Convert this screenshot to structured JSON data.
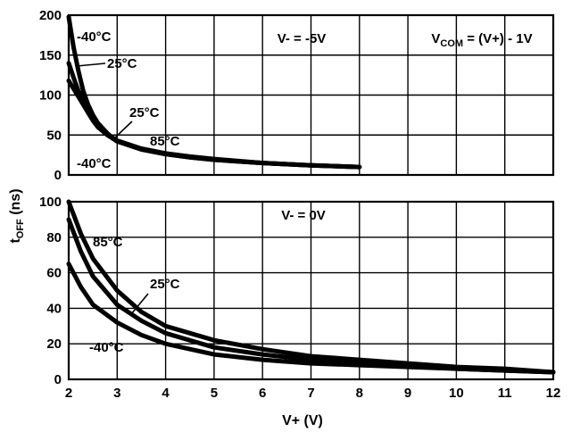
{
  "chart_data": [
    {
      "type": "line",
      "title": "",
      "annotation_box": "V- = -5V",
      "formula_parts": [
        "V",
        "COM",
        " = (V+) - 1V"
      ],
      "xlim": [
        2,
        12
      ],
      "ylim": [
        0,
        200
      ],
      "y_ticks": [
        "0",
        "50",
        "100",
        "150",
        "200"
      ],
      "x_ticks": [],
      "series": [
        {
          "name": "-40°C",
          "x": [
            2,
            2.1,
            2.2,
            2.3,
            2.4,
            2.5,
            2.6,
            2.8,
            3,
            3.5,
            4,
            4.5,
            5,
            6,
            7,
            8
          ],
          "y": [
            198,
            160,
            130,
            105,
            88,
            75,
            65,
            52,
            42,
            32,
            26,
            22,
            19,
            15,
            12,
            10
          ]
        },
        {
          "name": "25°C",
          "x": [
            2,
            2.1,
            2.2,
            2.3,
            2.4,
            2.5,
            2.6,
            2.8,
            3,
            3.5,
            4,
            4.5,
            5,
            6,
            7,
            8
          ],
          "y": [
            140,
            122,
            105,
            92,
            80,
            70,
            62,
            50,
            42,
            32,
            26,
            22,
            19,
            15,
            12,
            10
          ]
        },
        {
          "name": "85°C",
          "x": [
            2,
            2.1,
            2.2,
            2.3,
            2.4,
            2.5,
            2.6,
            2.8,
            3,
            3.5,
            4,
            4.5,
            5,
            6,
            7,
            8
          ],
          "y": [
            118,
            108,
            98,
            88,
            78,
            68,
            60,
            50,
            43,
            33,
            27,
            23,
            20,
            15,
            12,
            10
          ]
        }
      ]
    },
    {
      "type": "line",
      "title": "",
      "annotation_box": "V- = 0V",
      "xlabel": "V+ (V)",
      "ylabel_parts": [
        "t",
        "OFF",
        " (ns)"
      ],
      "xlim": [
        2,
        12
      ],
      "ylim": [
        0,
        100
      ],
      "y_ticks": [
        "0",
        "20",
        "40",
        "60",
        "80",
        "100"
      ],
      "x_ticks": [
        "2",
        "3",
        "4",
        "5",
        "6",
        "7",
        "8",
        "9",
        "10",
        "11",
        "12"
      ],
      "series": [
        {
          "name": "85°C",
          "x": [
            2,
            2.25,
            2.5,
            3,
            3.5,
            4,
            5,
            6,
            7,
            8,
            9,
            10,
            11,
            12
          ],
          "y": [
            100,
            82,
            68,
            50,
            38,
            30,
            22,
            17,
            13,
            11,
            9,
            7,
            6,
            4
          ]
        },
        {
          "name": "25°C",
          "x": [
            2,
            2.25,
            2.5,
            3,
            3.5,
            4,
            5,
            6,
            7,
            8,
            9,
            10,
            11,
            12
          ],
          "y": [
            90,
            72,
            58,
            42,
            33,
            26,
            18,
            14,
            11,
            9,
            8,
            6,
            5,
            4
          ]
        },
        {
          "name": "-40°C",
          "x": [
            2,
            2.25,
            2.5,
            3,
            3.5,
            4,
            5,
            6,
            7,
            8,
            9,
            10,
            11,
            12
          ],
          "y": [
            65,
            52,
            42,
            32,
            25,
            20,
            14,
            11,
            9,
            8,
            7,
            6,
            5,
            4
          ]
        }
      ],
      "curve_labels": [
        "85°C",
        "25°C",
        "-40°C"
      ]
    }
  ],
  "top_labels": [
    "-40°C",
    "25°C",
    "25°C",
    "85°C",
    "-40°C"
  ]
}
